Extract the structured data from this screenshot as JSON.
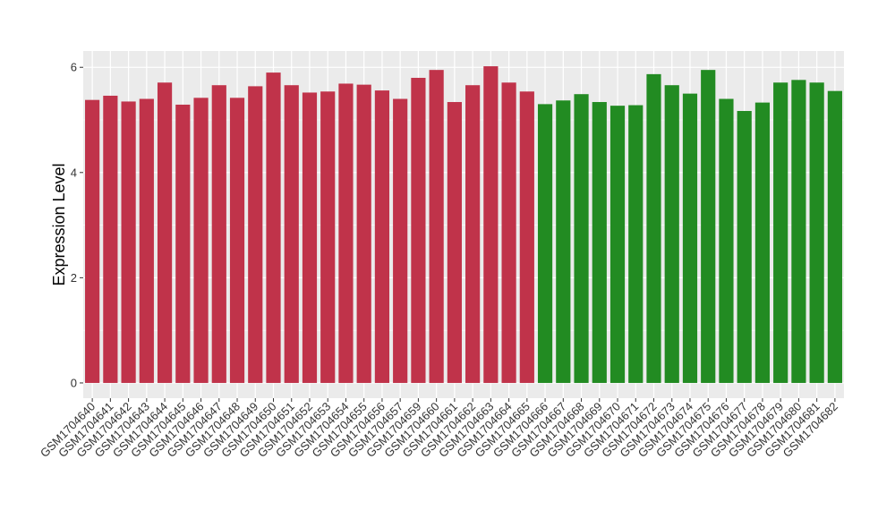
{
  "chart_data": {
    "type": "bar",
    "y_label": "Expression Level",
    "categories": [
      "GSM1704640",
      "GSM1704641",
      "GSM1704642",
      "GSM1704643",
      "GSM1704644",
      "GSM1704645",
      "GSM1704646",
      "GSM1704647",
      "GSM1704648",
      "GSM1704649",
      "GSM1704650",
      "GSM1704651",
      "GSM1704652",
      "GSM1704653",
      "GSM1704654",
      "GSM1704655",
      "GSM1704656",
      "GSM1704657",
      "GSM1704659",
      "GSM1704660",
      "GSM1704661",
      "GSM1704662",
      "GSM1704663",
      "GSM1704664",
      "GSM1704665",
      "GSM1704666",
      "GSM1704667",
      "GSM1704668",
      "GSM1704669",
      "GSM1704670",
      "GSM1704671",
      "GSM1704672",
      "GSM1704673",
      "GSM1704674",
      "GSM1704675",
      "GSM1704676",
      "GSM1704677",
      "GSM1704678",
      "GSM1704679",
      "GSM1704680",
      "GSM1704681",
      "GSM1704682"
    ],
    "values": [
      5.38,
      5.46,
      5.35,
      5.4,
      5.71,
      5.29,
      5.42,
      5.66,
      5.42,
      5.64,
      5.9,
      5.66,
      5.52,
      5.54,
      5.69,
      5.67,
      5.56,
      5.4,
      5.8,
      5.95,
      5.34,
      5.66,
      6.02,
      5.71,
      5.54,
      5.3,
      5.37,
      5.49,
      5.34,
      5.27,
      5.28,
      5.87,
      5.66,
      5.5,
      5.95,
      5.4,
      5.17,
      5.33,
      5.71,
      5.76,
      5.71,
      5.55
    ],
    "bar_colors": [
      "#c0334a",
      "#c0334a",
      "#c0334a",
      "#c0334a",
      "#c0334a",
      "#c0334a",
      "#c0334a",
      "#c0334a",
      "#c0334a",
      "#c0334a",
      "#c0334a",
      "#c0334a",
      "#c0334a",
      "#c0334a",
      "#c0334a",
      "#c0334a",
      "#c0334a",
      "#c0334a",
      "#c0334a",
      "#c0334a",
      "#c0334a",
      "#c0334a",
      "#c0334a",
      "#c0334a",
      "#c0334a",
      "#228b22",
      "#228b22",
      "#228b22",
      "#228b22",
      "#228b22",
      "#228b22",
      "#228b22",
      "#228b22",
      "#228b22",
      "#228b22",
      "#228b22",
      "#228b22",
      "#228b22",
      "#228b22",
      "#228b22",
      "#228b22",
      "#228b22"
    ],
    "ylim": [
      -0.29,
      6.31
    ],
    "yticks": [
      0,
      2,
      4,
      6
    ],
    "grid": true
  }
}
